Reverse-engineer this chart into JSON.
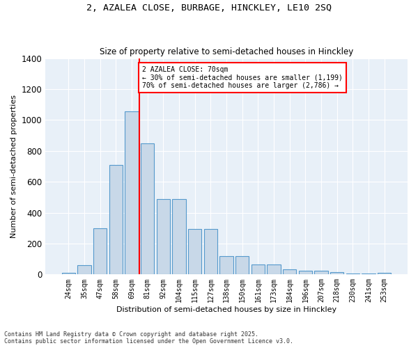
{
  "title_line1": "2, AZALEA CLOSE, BURBAGE, HINCKLEY, LE10 2SQ",
  "title_line2": "Size of property relative to semi-detached houses in Hinckley",
  "xlabel": "Distribution of semi-detached houses by size in Hinckley",
  "ylabel": "Number of semi-detached properties",
  "bins": [
    "24sqm",
    "35sqm",
    "47sqm",
    "58sqm",
    "69sqm",
    "81sqm",
    "92sqm",
    "104sqm",
    "115sqm",
    "127sqm",
    "138sqm",
    "150sqm",
    "161sqm",
    "173sqm",
    "184sqm",
    "196sqm",
    "207sqm",
    "218sqm",
    "230sqm",
    "241sqm",
    "253sqm"
  ],
  "values": [
    10,
    60,
    300,
    710,
    1055,
    850,
    490,
    490,
    295,
    295,
    120,
    120,
    65,
    65,
    35,
    25,
    25,
    15,
    5,
    5,
    10
  ],
  "bar_color": "#c8d8e8",
  "bar_edge_color": "#5599cc",
  "red_line_index": 4,
  "annotation_text": "2 AZALEA CLOSE: 70sqm\n← 30% of semi-detached houses are smaller (1,199)\n70% of semi-detached houses are larger (2,786) →",
  "ylim": [
    0,
    1400
  ],
  "yticks": [
    0,
    200,
    400,
    600,
    800,
    1000,
    1200,
    1400
  ],
  "bg_color": "#e8f0f8",
  "footer_line1": "Contains HM Land Registry data © Crown copyright and database right 2025.",
  "footer_line2": "Contains public sector information licensed under the Open Government Licence v3.0."
}
